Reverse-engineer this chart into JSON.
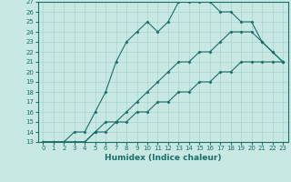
{
  "xlabel": "Humidex (Indice chaleur)",
  "ylabel": "",
  "xlim": [
    -0.5,
    23.5
  ],
  "ylim": [
    13,
    27
  ],
  "background_color": "#c8e8e4",
  "grid_color": "#a8d4d0",
  "line_color": "#1a6e6a",
  "curves": [
    {
      "x": [
        0,
        1,
        2,
        3,
        4,
        5,
        6,
        7,
        8,
        9,
        10,
        11,
        12,
        13,
        14,
        15,
        16,
        17,
        18,
        19,
        20,
        21,
        22,
        23
      ],
      "y": [
        13,
        13,
        13,
        14,
        14,
        16,
        18,
        21,
        23,
        24,
        25,
        24,
        25,
        27,
        27,
        27,
        27,
        26,
        26,
        25,
        25,
        23,
        22,
        21
      ]
    },
    {
      "x": [
        0,
        1,
        2,
        3,
        4,
        5,
        6,
        7,
        8,
        9,
        10,
        11,
        12,
        13,
        14,
        15,
        16,
        17,
        18,
        19,
        20,
        21,
        22,
        23
      ],
      "y": [
        13,
        13,
        13,
        13,
        13,
        14,
        15,
        15,
        16,
        17,
        18,
        19,
        20,
        21,
        21,
        22,
        22,
        23,
        24,
        24,
        24,
        23,
        22,
        21
      ]
    },
    {
      "x": [
        0,
        1,
        2,
        3,
        4,
        5,
        6,
        7,
        8,
        9,
        10,
        11,
        12,
        13,
        14,
        15,
        16,
        17,
        18,
        19,
        20,
        21,
        22,
        23
      ],
      "y": [
        13,
        13,
        13,
        13,
        13,
        14,
        14,
        15,
        15,
        16,
        16,
        17,
        17,
        18,
        18,
        19,
        19,
        20,
        20,
        21,
        21,
        21,
        21,
        21
      ]
    }
  ],
  "yticks": [
    13,
    14,
    15,
    16,
    17,
    18,
    19,
    20,
    21,
    22,
    23,
    24,
    25,
    26,
    27
  ],
  "xticks": [
    0,
    1,
    2,
    3,
    4,
    5,
    6,
    7,
    8,
    9,
    10,
    11,
    12,
    13,
    14,
    15,
    16,
    17,
    18,
    19,
    20,
    21,
    22,
    23
  ],
  "xtick_fontsize": 5.0,
  "ytick_fontsize": 5.0,
  "xlabel_fontsize": 6.5,
  "marker": "D",
  "marker_size": 1.5,
  "linewidth": 0.8
}
